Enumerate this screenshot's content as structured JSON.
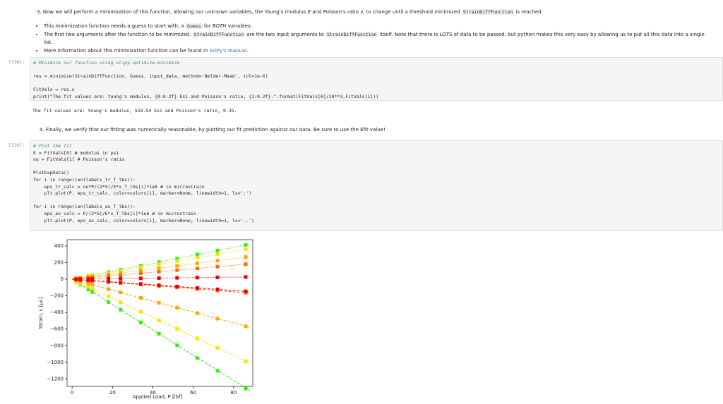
{
  "notebook": {
    "step3": [
      "3. Now we will perform a minimization of this function, allowing our unknown variables, the Young's modulus ",
      {
        "em": "E"
      },
      " and Poisson's ratio ",
      {
        "em": "ν"
      },
      ", to change until a threshold minimized ",
      {
        "code": "StrainDiffFunction"
      },
      " is reached."
    ],
    "bullets": [
      [
        "This minimization function needs a guess to start with, a ",
        {
          "code": "Guess"
        },
        " for ",
        {
          "em": "BOTH"
        },
        " variables."
      ],
      [
        "The first two arguments after the function to be minimized, ",
        {
          "code": "StrainDiffFunction"
        },
        " are the two input arguments to ",
        {
          "code": "StrainDiffFunction"
        },
        " itself. Note that there is LOTS of data to be passed, but python makes this very easy by allowing us to put all this data into a single list."
      ],
      [
        "More information about this minimization function can be found in ",
        {
          "link": "SciPy's manual"
        },
        "."
      ]
    ],
    "cell1": {
      "prompt": "[338]:",
      "code": [
        "# Minimize our function using scipy.optimize.minimize",
        "",
        "res = minimize(StrainDiffFunction, Guess, input_data, method='Nelder-Mead', tol=1e-6)",
        "",
        "FitVals = res.x",
        "print(\"The fit values are: Young's modulus, {0:0.2f} ksi and Poisson's ratio, {1:0.2f}.\".format(FitVals[0]/10**3,FitVals[1]))"
      ],
      "output": "The fit values are: Young's modulus, 559.54 ksi and Poisson's ratio, 0.35."
    },
    "step4": [
      "4. Finally, we verify that our fitting was numerically reasonable, by plotting our fit prediction against our data. Be sure to use the Efit value!"
    ],
    "cell2": {
      "prompt": "[339]:",
      "code": [
        "# Plot the fit",
        "E = FitVals[0] # modulus in psi",
        "nu = FitVals[1] # Poisson's ratio",
        "",
        "PlotExpData()",
        "for i in range(len(labels_tr_T_lbs)):",
        "    eps_tr_calc = nu*P/(2*S)/E*x_T_lbs[i]*1e6 # in microstrain",
        "    plt.plot(P, eps_tr_calc, color=colors[i], marker=None, linewidth=1, ls=':')",
        "",
        "for i in range(len(labels_ax_T_lbs)):",
        "    eps_ax_calc = P/(2*S)/E*x_T_lbs[i]*1e6 # in microstrain",
        "    plt.plot(P, eps_ax_calc, color=colors[i], marker=None, linewidth=1, ls='--')"
      ]
    }
  },
  "chart_data": {
    "type": "scatter",
    "xlabel": "Applied Load, P [lbf]",
    "ylabel": "Strain, ε [με]",
    "xlim": [
      -2.5,
      89.5
    ],
    "ylim": [
      -1290,
      475
    ],
    "xticks": [
      0,
      20,
      40,
      60,
      80
    ],
    "yticks": [
      {
        "value": -1200,
        "label": "−1200"
      },
      {
        "value": -1000,
        "label": "−1000"
      },
      {
        "value": -800,
        "label": "−800"
      },
      {
        "value": -600,
        "label": "−600"
      },
      {
        "value": -400,
        "label": "−400"
      },
      {
        "value": -200,
        "label": "−200"
      },
      0,
      200,
      400
    ],
    "series": [
      {
        "color": "#33ee11",
        "linestyle": "dotted",
        "x": [
          2,
          4,
          8,
          10,
          18,
          24,
          34,
          43,
          52,
          62,
          72,
          86
        ],
        "values": [
          10,
          19,
          38,
          48,
          86,
          115,
          163,
          206,
          250,
          298,
          346,
          413
        ],
        "fit_x": [
          0,
          88
        ],
        "fit_values": [
          0,
          420
        ]
      },
      {
        "color": "#ffe000",
        "linestyle": "dotted",
        "x": [
          2,
          4,
          8,
          10,
          18,
          24,
          34,
          43,
          52,
          62,
          72,
          86
        ],
        "values": [
          8,
          17,
          34,
          42,
          76,
          101,
          143,
          181,
          218,
          260,
          302,
          361
        ],
        "fit_x": [
          0,
          88
        ],
        "fit_values": [
          0,
          368
        ]
      },
      {
        "color": "#ffa500",
        "linestyle": "dotted",
        "x": [
          2,
          4,
          8,
          10,
          18,
          24,
          34,
          43,
          52,
          62,
          72,
          86
        ],
        "values": [
          6,
          12,
          25,
          31,
          56,
          74,
          105,
          133,
          161,
          192,
          223,
          267
        ],
        "fit_x": [
          0,
          88
        ],
        "fit_values": [
          0,
          272
        ]
      },
      {
        "color": "#ff6a00",
        "linestyle": "dotted",
        "x": [
          2,
          4,
          8,
          10,
          18,
          24,
          34,
          43,
          52,
          62,
          72,
          86
        ],
        "values": [
          4,
          8,
          17,
          21,
          38,
          50,
          71,
          90,
          109,
          130,
          151,
          181
        ],
        "fit_x": [
          0,
          88
        ],
        "fit_values": [
          0,
          184
        ]
      },
      {
        "color": "#ee0000",
        "linestyle": "dotted",
        "x": [
          2,
          4,
          8,
          10,
          18,
          24,
          34,
          43,
          52,
          62,
          72,
          86
        ],
        "values": [
          1,
          1,
          2,
          3,
          5,
          7,
          10,
          13,
          16,
          19,
          22,
          26
        ],
        "fit_x": [
          0,
          88
        ],
        "fit_values": [
          0,
          27
        ]
      },
      {
        "color": "#33ee11",
        "linestyle": "dashed",
        "x": [
          2,
          4,
          8,
          10,
          18,
          24,
          34,
          43,
          52,
          62,
          72,
          86
        ],
        "values": [
          -31,
          -61,
          -122,
          -153,
          -275,
          -367,
          -520,
          -658,
          -796,
          -949,
          -1102,
          -1316
        ],
        "fit_x": [
          0,
          88
        ],
        "fit_values": [
          0,
          -1340
        ]
      },
      {
        "color": "#ffe000",
        "linestyle": "dashed",
        "x": [
          2,
          4,
          8,
          10,
          18,
          24,
          34,
          43,
          52,
          62,
          72,
          86
        ],
        "values": [
          -23,
          -46,
          -92,
          -115,
          -207,
          -276,
          -391,
          -495,
          -598,
          -713,
          -828,
          -989
        ],
        "fit_x": [
          0,
          88
        ],
        "fit_values": [
          0,
          -1010
        ]
      },
      {
        "color": "#ffa500",
        "linestyle": "dashed",
        "x": [
          2,
          4,
          8,
          10,
          18,
          24,
          34,
          43,
          52,
          62,
          72,
          86
        ],
        "values": [
          -13,
          -26,
          -53,
          -66,
          -119,
          -158,
          -224,
          -284,
          -343,
          -409,
          -475,
          -568
        ],
        "fit_x": [
          0,
          88
        ],
        "fit_values": [
          0,
          -580
        ]
      },
      {
        "color": "#ff6a00",
        "linestyle": "dashed",
        "x": [
          2,
          4,
          8,
          10,
          18,
          24,
          34,
          43,
          52,
          62,
          72,
          86
        ],
        "values": [
          -4,
          -8,
          -15,
          -19,
          -34,
          -46,
          -65,
          -82,
          -99,
          -118,
          -137,
          -163
        ],
        "fit_x": [
          0,
          88
        ],
        "fit_values": [
          0,
          -167
        ]
      },
      {
        "color": "#ee0000",
        "linestyle": "dashed",
        "x": [
          2,
          4,
          8,
          10,
          18,
          24,
          34,
          43,
          52,
          62,
          72,
          86
        ],
        "values": [
          -3,
          -7,
          -14,
          -17,
          -31,
          -41,
          -58,
          -73,
          -88,
          -105,
          -122,
          -146
        ],
        "fit_x": [
          0,
          88
        ],
        "fit_values": [
          0,
          -150
        ]
      }
    ]
  }
}
